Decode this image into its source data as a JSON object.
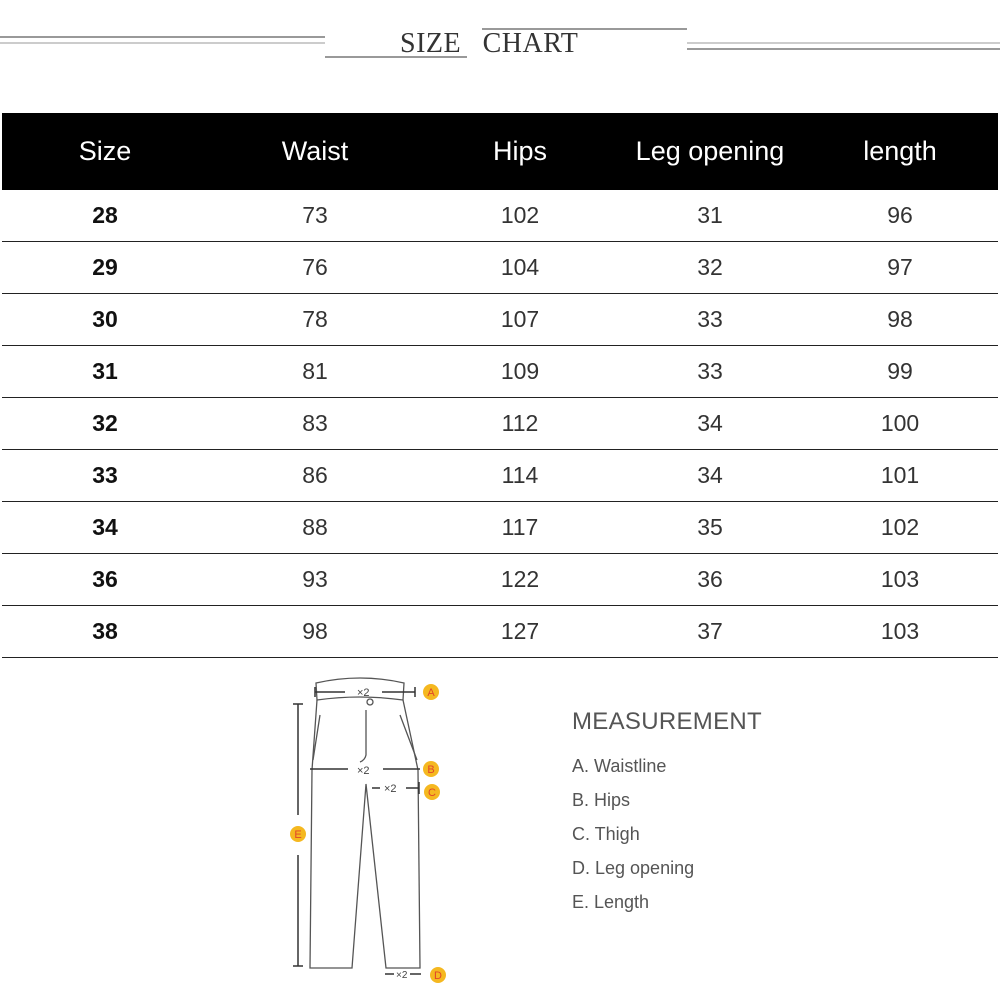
{
  "title": "SIZE  CHART",
  "table": {
    "headers": [
      "Size",
      "Waist",
      "Hips",
      "Leg opening",
      "length"
    ],
    "rows": [
      [
        "28",
        "73",
        "102",
        "31",
        "96"
      ],
      [
        "29",
        "76",
        "104",
        "32",
        "97"
      ],
      [
        "30",
        "78",
        "107",
        "33",
        "98"
      ],
      [
        "31",
        "81",
        "109",
        "33",
        "99"
      ],
      [
        "32",
        "83",
        "112",
        "34",
        "100"
      ],
      [
        "33",
        "86",
        "114",
        "34",
        "101"
      ],
      [
        "34",
        "88",
        "117",
        "35",
        "102"
      ],
      [
        "36",
        "93",
        "122",
        "36",
        "103"
      ],
      [
        "38",
        "98",
        "127",
        "37",
        "103"
      ]
    ]
  },
  "diagram": {
    "labels": [
      "A",
      "B",
      "C",
      "D",
      "E"
    ],
    "mult": "×2",
    "badge_color": "#f5b820",
    "letter_color": "#e0452a"
  },
  "measurement": {
    "title": "MEASUREMENT",
    "items": [
      "A. Waistline",
      "B. Hips",
      "C. Thigh",
      "D. Leg opening",
      "E. Length"
    ]
  }
}
